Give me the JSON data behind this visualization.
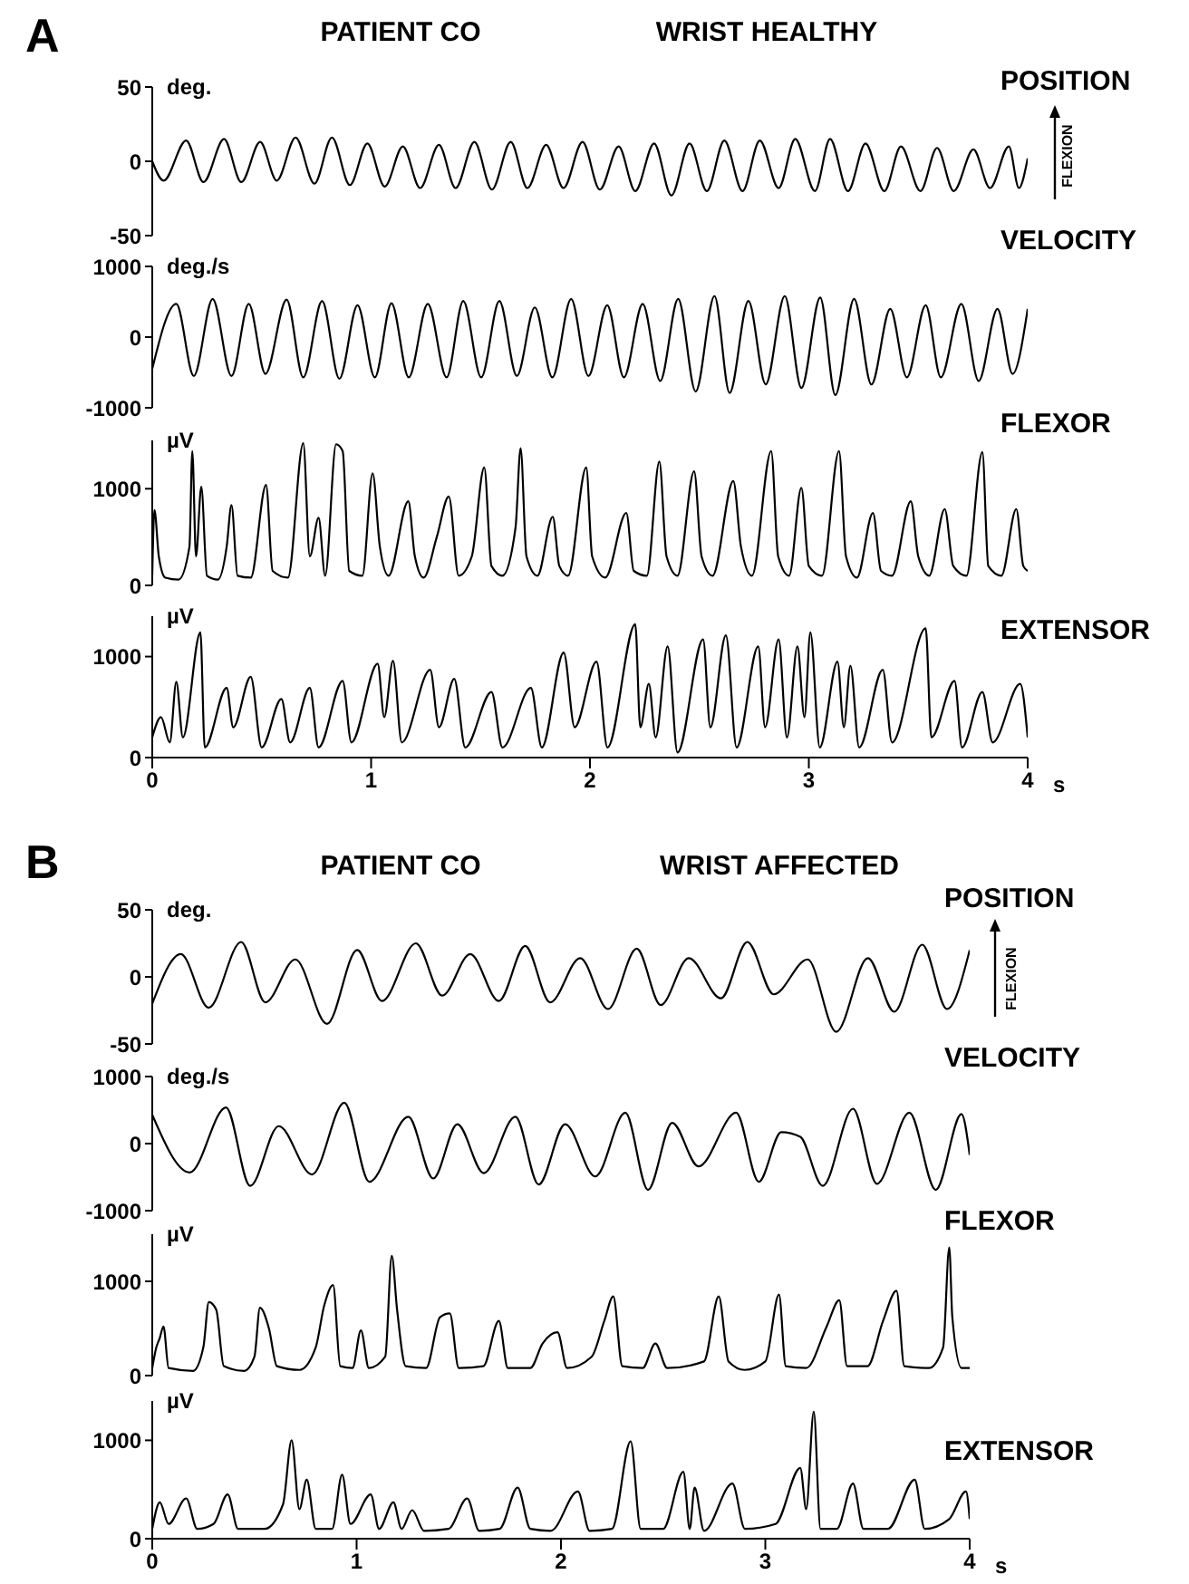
{
  "chart_data": [
    {
      "type": "line",
      "title": "POSITION",
      "ylabel": "deg.",
      "annotations": [
        "A",
        "PATIENT CO",
        "WRIST HEALTHY",
        "FLEXION"
      ],
      "color": "#000000",
      "xlim": [
        0,
        4
      ],
      "xticks": [
        0,
        1,
        2,
        3,
        4
      ],
      "ylim": [
        -50,
        50
      ],
      "yticks": [
        -50,
        0,
        50
      ],
      "tick_labels": "y",
      "x": [
        0,
        0.052,
        0.155,
        0.234,
        0.328,
        0.407,
        0.493,
        0.569,
        0.655,
        0.741,
        0.821,
        0.903,
        0.983,
        1.062,
        1.145,
        1.224,
        1.31,
        1.386,
        1.472,
        1.552,
        1.638,
        1.714,
        1.8,
        1.879,
        1.966,
        2.045,
        2.131,
        2.207,
        2.293,
        2.372,
        2.455,
        2.534,
        2.614,
        2.697,
        2.776,
        2.862,
        2.938,
        3.028,
        3.097,
        3.179,
        3.259,
        3.345,
        3.421,
        3.51,
        3.586,
        3.662,
        3.752,
        3.828,
        3.914,
        3.96,
        4.0
      ],
      "values": [
        0,
        -13,
        14,
        -14,
        15,
        -14,
        13,
        -13,
        16,
        -15,
        16,
        -16,
        12,
        -17,
        10,
        -18,
        11,
        -18,
        13,
        -19,
        13,
        -18,
        11,
        -18,
        13,
        -19,
        10,
        -20,
        12,
        -23,
        12,
        -20,
        14,
        -20,
        14,
        -18,
        15,
        -20,
        15,
        -20,
        12,
        -20,
        10,
        -20,
        9,
        -20,
        8,
        -18,
        10,
        -18,
        2
      ]
    },
    {
      "type": "line",
      "title": "VELOCITY",
      "ylabel": "deg./s",
      "color": "#000000",
      "xlim": [
        0,
        4
      ],
      "xticks": [
        0,
        1,
        2,
        3,
        4
      ],
      "ylim": [
        -1000,
        1000
      ],
      "yticks": [
        -1000,
        0,
        1000
      ],
      "tick_labels": "y",
      "x": [
        0,
        0.11,
        0.19,
        0.276,
        0.362,
        0.441,
        0.517,
        0.614,
        0.69,
        0.776,
        0.855,
        0.938,
        1.017,
        1.093,
        1.172,
        1.259,
        1.345,
        1.421,
        1.503,
        1.586,
        1.666,
        1.748,
        1.828,
        1.914,
        1.993,
        2.079,
        2.155,
        2.241,
        2.321,
        2.403,
        2.483,
        2.569,
        2.638,
        2.724,
        2.803,
        2.89,
        2.966,
        3.052,
        3.121,
        3.207,
        3.286,
        3.372,
        3.448,
        3.534,
        3.603,
        3.697,
        3.776,
        3.862,
        3.931,
        4.0
      ],
      "values": [
        -450,
        470,
        -550,
        540,
        -550,
        470,
        -520,
        530,
        -570,
        510,
        -590,
        450,
        -570,
        480,
        -570,
        470,
        -570,
        510,
        -570,
        510,
        -550,
        420,
        -570,
        540,
        -550,
        450,
        -570,
        470,
        -620,
        540,
        -770,
        580,
        -790,
        510,
        -670,
        580,
        -720,
        560,
        -820,
        540,
        -670,
        400,
        -570,
        450,
        -570,
        470,
        -620,
        400,
        -520,
        400
      ]
    },
    {
      "type": "line",
      "title": "FLEXOR",
      "ylabel": "µV",
      "color": "#000000",
      "xlim": [
        0,
        4
      ],
      "xticks": [
        0,
        1,
        2,
        3,
        4
      ],
      "ylim": [
        0,
        1500
      ],
      "yticks": [
        0,
        1000
      ],
      "tick_labels": "y",
      "x": [
        0,
        0.01,
        0.03,
        0.06,
        0.12,
        0.17,
        0.183,
        0.2,
        0.224,
        0.25,
        0.3,
        0.34,
        0.362,
        0.39,
        0.45,
        0.52,
        0.55,
        0.62,
        0.69,
        0.72,
        0.76,
        0.79,
        0.84,
        0.87,
        0.9,
        0.96,
        1.007,
        1.04,
        1.08,
        1.17,
        1.2,
        1.24,
        1.3,
        1.355,
        1.4,
        1.46,
        1.517,
        1.55,
        1.6,
        1.66,
        1.683,
        1.71,
        1.76,
        1.83,
        1.86,
        1.9,
        1.983,
        2.01,
        2.07,
        2.166,
        2.2,
        2.26,
        2.317,
        2.35,
        2.4,
        2.476,
        2.51,
        2.56,
        2.655,
        2.69,
        2.74,
        2.828,
        2.86,
        2.91,
        2.966,
        3.0,
        3.06,
        3.138,
        3.17,
        3.22,
        3.293,
        3.33,
        3.38,
        3.466,
        3.5,
        3.55,
        3.621,
        3.66,
        3.72,
        3.793,
        3.82,
        3.88,
        3.948,
        3.98,
        4.0
      ],
      "values": [
        100,
        780,
        300,
        80,
        60,
        400,
        1390,
        300,
        1020,
        100,
        60,
        400,
        830,
        100,
        80,
        1040,
        150,
        80,
        1470,
        300,
        700,
        100,
        1460,
        1390,
        150,
        100,
        1160,
        400,
        100,
        870,
        300,
        80,
        500,
        920,
        100,
        300,
        1220,
        200,
        100,
        600,
        1420,
        300,
        100,
        710,
        200,
        100,
        1220,
        300,
        80,
        750,
        150,
        100,
        1280,
        300,
        100,
        1180,
        300,
        100,
        1080,
        400,
        100,
        1390,
        300,
        100,
        1010,
        200,
        100,
        1390,
        300,
        80,
        750,
        150,
        100,
        870,
        300,
        100,
        790,
        200,
        100,
        1380,
        200,
        100,
        790,
        200,
        150
      ]
    },
    {
      "type": "line",
      "title": "EXTENSOR",
      "ylabel": "µV",
      "xlabel": "s",
      "color": "#000000",
      "xlim": [
        0,
        4
      ],
      "xticks": [
        0,
        1,
        2,
        3,
        4
      ],
      "ylim": [
        0,
        1400
      ],
      "yticks": [
        0,
        1000
      ],
      "x": [
        0,
        0.04,
        0.08,
        0.11,
        0.14,
        0.22,
        0.24,
        0.34,
        0.37,
        0.45,
        0.5,
        0.59,
        0.63,
        0.72,
        0.76,
        0.87,
        0.91,
        1.03,
        1.06,
        1.1,
        1.14,
        1.27,
        1.31,
        1.38,
        1.43,
        1.55,
        1.6,
        1.73,
        1.78,
        1.88,
        1.93,
        2.03,
        2.08,
        2.207,
        2.23,
        2.269,
        2.3,
        2.355,
        2.4,
        2.517,
        2.55,
        2.621,
        2.67,
        2.769,
        2.8,
        2.862,
        2.9,
        2.948,
        2.98,
        3.007,
        3.05,
        3.131,
        3.16,
        3.19,
        3.23,
        3.338,
        3.38,
        3.534,
        3.56,
        3.666,
        3.7,
        3.793,
        3.84,
        3.966,
        4.0
      ],
      "values": [
        200,
        400,
        150,
        750,
        200,
        1240,
        100,
        690,
        300,
        800,
        100,
        580,
        150,
        690,
        100,
        760,
        150,
        930,
        400,
        960,
        150,
        870,
        300,
        780,
        100,
        650,
        100,
        690,
        100,
        1040,
        300,
        950,
        100,
        1320,
        300,
        730,
        200,
        1100,
        50,
        1170,
        300,
        1210,
        100,
        1100,
        300,
        1170,
        200,
        1100,
        400,
        1240,
        100,
        950,
        300,
        910,
        100,
        870,
        150,
        1280,
        200,
        760,
        100,
        650,
        150,
        730,
        200
      ]
    },
    {
      "type": "line",
      "title": "POSITION",
      "ylabel": "deg.",
      "annotations": [
        "B",
        "PATIENT CO",
        "WRIST AFFECTED",
        "FLEXION"
      ],
      "color": "#000000",
      "xlim": [
        0,
        4
      ],
      "xticks": [
        0,
        1,
        2,
        3,
        4
      ],
      "ylim": [
        -50,
        50
      ],
      "yticks": [
        -50,
        0,
        50
      ],
      "tick_labels": "y",
      "x": [
        0,
        0.14,
        0.276,
        0.435,
        0.553,
        0.7,
        0.855,
        1.003,
        1.124,
        1.29,
        1.419,
        1.556,
        1.696,
        1.825,
        1.947,
        2.094,
        2.23,
        2.371,
        2.488,
        2.625,
        2.783,
        2.912,
        3.041,
        3.207,
        3.347,
        3.502,
        3.631,
        3.768,
        3.889,
        4.0
      ],
      "values": [
        -20,
        17,
        -23,
        26,
        -19,
        13,
        -35,
        20,
        -18,
        25,
        -14,
        17,
        -18,
        23,
        -19,
        14,
        -24,
        21,
        -21,
        14,
        -16,
        26,
        -13,
        13,
        -41,
        14,
        -26,
        24,
        -24,
        20
      ]
    },
    {
      "type": "line",
      "title": "VELOCITY",
      "ylabel": "deg./s",
      "color": "#000000",
      "xlim": [
        0,
        4
      ],
      "xticks": [
        0,
        1,
        2,
        3,
        4
      ],
      "ylim": [
        -1000,
        1000
      ],
      "yticks": [
        -1000,
        0,
        1000
      ],
      "tick_labels": "y",
      "x": [
        0,
        0.184,
        0.361,
        0.479,
        0.619,
        0.782,
        0.94,
        1.062,
        1.253,
        1.375,
        1.493,
        1.622,
        1.777,
        1.891,
        2.02,
        2.168,
        2.315,
        2.426,
        2.544,
        2.673,
        2.857,
        2.968,
        3.078,
        3.171,
        3.281,
        3.429,
        3.546,
        3.705,
        3.834,
        3.96,
        4.0
      ],
      "values": [
        430,
        -430,
        540,
        -630,
        260,
        -460,
        610,
        -570,
        400,
        -520,
        290,
        -440,
        400,
        -610,
        290,
        -490,
        460,
        -690,
        310,
        -340,
        460,
        -570,
        170,
        100,
        -630,
        520,
        -600,
        460,
        -690,
        440,
        -170
      ]
    },
    {
      "type": "line",
      "title": "FLEXOR",
      "ylabel": "µV",
      "color": "#000000",
      "xlim": [
        0,
        4
      ],
      "xticks": [
        0,
        1,
        2,
        3,
        4
      ],
      "ylim": [
        0,
        1500
      ],
      "yticks": [
        0,
        1000
      ],
      "tick_labels": "y",
      "x": [
        0,
        0.02,
        0.037,
        0.055,
        0.08,
        0.2,
        0.25,
        0.277,
        0.313,
        0.35,
        0.45,
        0.5,
        0.527,
        0.571,
        0.61,
        0.72,
        0.8,
        0.841,
        0.885,
        0.92,
        0.98,
        1.021,
        1.06,
        1.14,
        1.172,
        1.198,
        1.24,
        1.34,
        1.408,
        1.456,
        1.5,
        1.62,
        1.696,
        1.74,
        1.85,
        1.91,
        1.983,
        2.03,
        2.15,
        2.212,
        2.256,
        2.3,
        2.4,
        2.462,
        2.52,
        2.7,
        2.772,
        2.82,
        2.9,
        3.0,
        3.067,
        3.1,
        3.2,
        3.3,
        3.362,
        3.4,
        3.5,
        3.576,
        3.642,
        3.68,
        3.8,
        3.87,
        3.9,
        3.915,
        3.96,
        4.0
      ],
      "values": [
        80,
        300,
        400,
        520,
        80,
        50,
        300,
        780,
        700,
        100,
        50,
        200,
        720,
        500,
        100,
        60,
        300,
        740,
        960,
        100,
        80,
        480,
        80,
        200,
        1270,
        700,
        100,
        80,
        620,
        660,
        80,
        100,
        580,
        80,
        80,
        340,
        460,
        80,
        200,
        580,
        840,
        100,
        80,
        340,
        80,
        150,
        840,
        150,
        60,
        150,
        860,
        100,
        80,
        520,
        800,
        100,
        100,
        580,
        900,
        100,
        80,
        300,
        1360,
        620,
        80,
        80
      ]
    },
    {
      "type": "line",
      "title": "EXTENSOR",
      "ylabel": "µV",
      "xlabel": "s",
      "color": "#000000",
      "xlim": [
        0,
        4
      ],
      "xticks": [
        0,
        1,
        2,
        3,
        4
      ],
      "ylim": [
        0,
        1400
      ],
      "yticks": [
        0,
        1000
      ],
      "x": [
        0,
        0.037,
        0.08,
        0.166,
        0.22,
        0.3,
        0.369,
        0.42,
        0.55,
        0.64,
        0.682,
        0.72,
        0.756,
        0.8,
        0.88,
        0.929,
        0.97,
        1.069,
        1.11,
        1.18,
        1.22,
        1.272,
        1.33,
        1.45,
        1.541,
        1.6,
        1.7,
        1.788,
        1.85,
        1.95,
        2.083,
        2.14,
        2.25,
        2.341,
        2.39,
        2.5,
        2.599,
        2.63,
        2.654,
        2.7,
        2.839,
        2.9,
        3.05,
        3.171,
        3.2,
        3.237,
        3.27,
        3.35,
        3.429,
        3.48,
        3.6,
        3.731,
        3.78,
        3.9,
        3.982,
        4.0
      ],
      "values": [
        100,
        370,
        150,
        410,
        100,
        150,
        450,
        100,
        100,
        350,
        1000,
        300,
        600,
        100,
        100,
        650,
        150,
        450,
        100,
        370,
        100,
        290,
        80,
        100,
        410,
        80,
        100,
        520,
        100,
        80,
        480,
        80,
        100,
        990,
        100,
        100,
        680,
        100,
        520,
        80,
        560,
        100,
        150,
        720,
        300,
        1290,
        100,
        100,
        560,
        100,
        100,
        600,
        100,
        200,
        480,
        200
      ]
    }
  ]
}
